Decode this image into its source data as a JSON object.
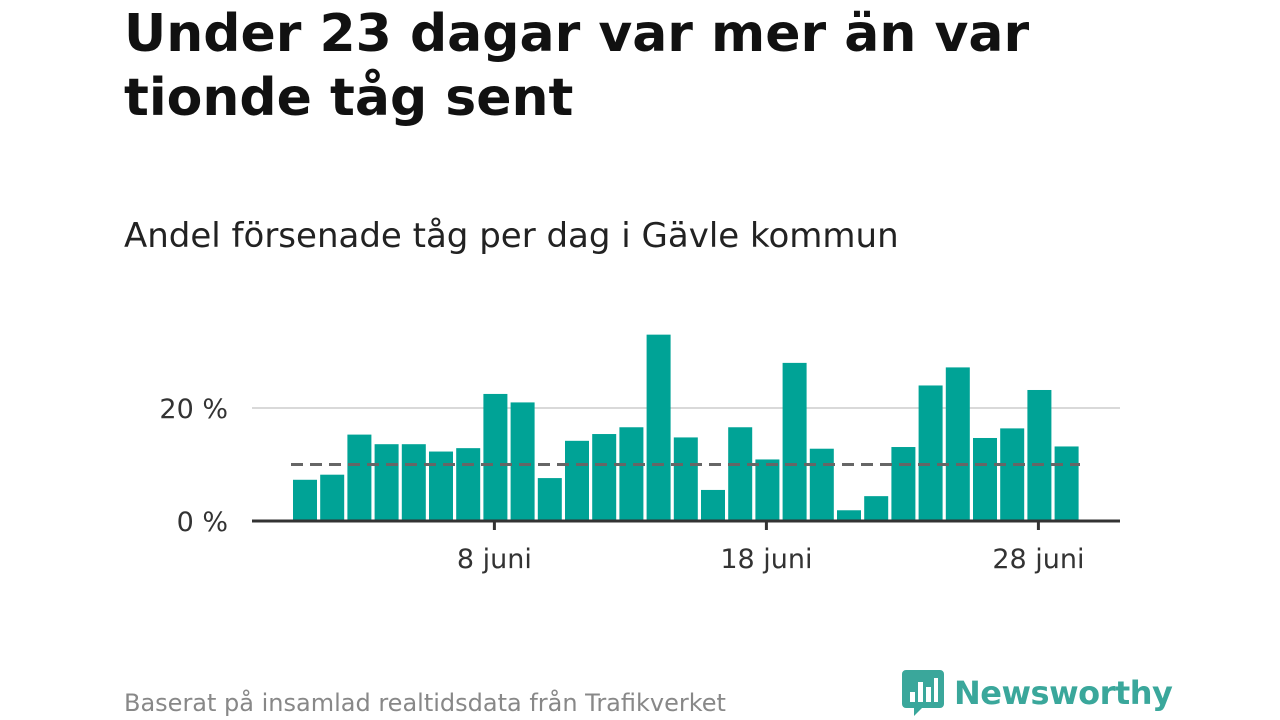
{
  "title": "Under 23 dagar var mer än var tionde tåg sent",
  "subtitle": "Andel försenade tåg per dag i Gävle kommun",
  "source": "Baserat på insamlad realtidsdata från Trafikverket",
  "brand": {
    "name": "Newsworthy",
    "icon": "newsworthy-logo-icon",
    "color": "#3aa79b"
  },
  "colors": {
    "bar": "#00a396",
    "reference_line": "#666666",
    "grid": "#d9d9d9",
    "axis": "#333333"
  },
  "chart_data": {
    "type": "bar",
    "x": [
      "1 juni",
      "2 juni",
      "3 juni",
      "4 juni",
      "5 juni",
      "6 juni",
      "7 juni",
      "8 juni",
      "9 juni",
      "10 juni",
      "11 juni",
      "12 juni",
      "13 juni",
      "14 juni",
      "15 juni",
      "16 juni",
      "17 juni",
      "18 juni",
      "19 juni",
      "20 juni",
      "21 juni",
      "22 juni",
      "23 juni",
      "24 juni",
      "25 juni",
      "26 juni",
      "27 juni",
      "28 juni",
      "29 juni"
    ],
    "values": [
      7.3,
      8.2,
      15.3,
      13.6,
      13.6,
      12.3,
      12.9,
      22.5,
      21.0,
      7.6,
      14.2,
      15.4,
      16.6,
      33.0,
      14.8,
      5.5,
      16.6,
      10.9,
      28.0,
      12.8,
      1.9,
      4.4,
      13.1,
      24.0,
      27.2,
      14.7,
      16.4,
      23.2,
      13.2
    ],
    "reference_value": 10,
    "x_ticks": [
      "8 juni",
      "18 juni",
      "28 juni"
    ],
    "y_ticks": [
      "0 %",
      "20 %"
    ],
    "ylim": [
      0,
      34
    ],
    "grid": true
  }
}
